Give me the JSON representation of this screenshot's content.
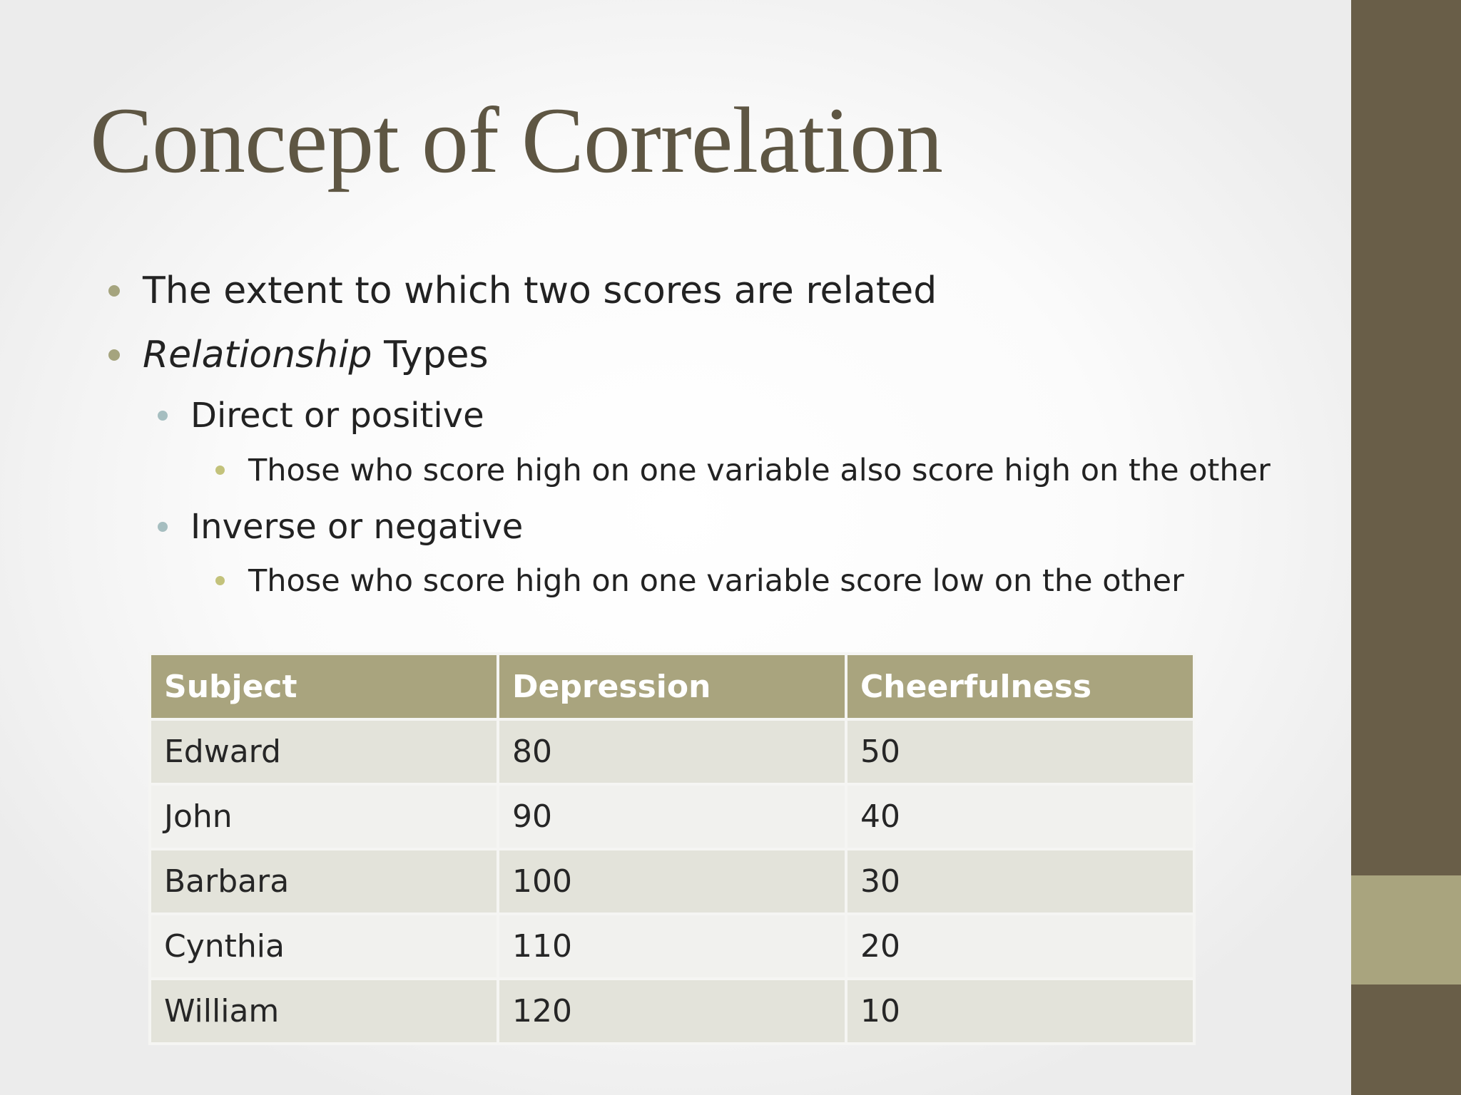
{
  "slide": {
    "title": "Concept of Correlation",
    "bullets": [
      {
        "level": 1,
        "text": "The extent to which two scores are related"
      },
      {
        "level": 1,
        "italic_part": "Relationship",
        "text": " Types"
      },
      {
        "level": 2,
        "text": "Direct or positive"
      },
      {
        "level": 3,
        "text": "Those who score high on one variable also score high on the other"
      },
      {
        "level": 2,
        "text": "Inverse or negative"
      },
      {
        "level": 3,
        "text": "Those who score high on one variable score low on the other"
      }
    ],
    "table": {
      "headers": [
        "Subject",
        "Depression",
        "Cheerfulness"
      ],
      "rows": [
        [
          "Edward",
          "80",
          "50"
        ],
        [
          "John",
          "90",
          "40"
        ],
        [
          "Barbara",
          "100",
          "30"
        ],
        [
          "Cynthia",
          "110",
          "20"
        ],
        [
          "William",
          "120",
          "10"
        ]
      ]
    }
  },
  "theme": {
    "title_color": "#5e5643",
    "header_color": "#a9a47e",
    "sidebar_dark": "#695e48",
    "sidebar_light": "#a9a47e"
  }
}
